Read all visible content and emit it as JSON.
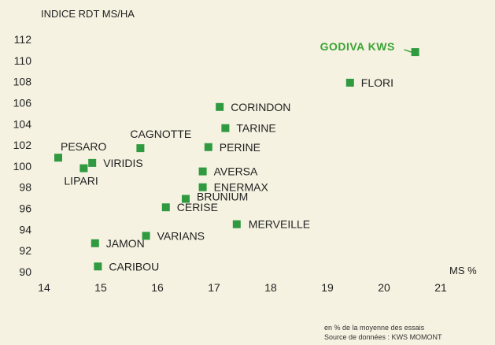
{
  "chart_data": {
    "type": "scatter",
    "title": "",
    "ylabel": "INDICE RDT MS/HA",
    "xlabel": "MS %",
    "xlim": [
      14,
      21
    ],
    "ylim": [
      90,
      112
    ],
    "xticks": [
      14,
      15,
      16,
      17,
      18,
      19,
      20,
      21
    ],
    "yticks": [
      90,
      92,
      94,
      96,
      98,
      100,
      102,
      104,
      106,
      108,
      110,
      112
    ],
    "grid": false,
    "marker_color": "#2f9a3f",
    "highlight_color": "#3aa535",
    "points": [
      {
        "label": "GODIVA KWS",
        "x": 20.55,
        "y": 110.8,
        "highlight": true
      },
      {
        "label": "FLORI",
        "x": 19.4,
        "y": 107.9
      },
      {
        "label": "CORINDON",
        "x": 17.1,
        "y": 105.6
      },
      {
        "label": "TARINE",
        "x": 17.2,
        "y": 103.6
      },
      {
        "label": "CAGNOTTE",
        "x": 15.7,
        "y": 101.7
      },
      {
        "label": "PERINE",
        "x": 16.9,
        "y": 101.8
      },
      {
        "label": "PESARO",
        "x": 14.25,
        "y": 100.8
      },
      {
        "label": "VIRIDIS",
        "x": 14.85,
        "y": 100.3
      },
      {
        "label": "LIPARI",
        "x": 14.7,
        "y": 99.8
      },
      {
        "label": "AVERSA",
        "x": 16.8,
        "y": 99.5
      },
      {
        "label": "ENERMAX",
        "x": 16.8,
        "y": 98.0
      },
      {
        "label": "BRUNIUM",
        "x": 16.5,
        "y": 96.9
      },
      {
        "label": "CERISE",
        "x": 16.15,
        "y": 96.1
      },
      {
        "label": "MERVEILLE",
        "x": 17.4,
        "y": 94.5
      },
      {
        "label": "VARIANS",
        "x": 15.8,
        "y": 93.4
      },
      {
        "label": "JAMON",
        "x": 14.9,
        "y": 92.7
      },
      {
        "label": "CARIBOU",
        "x": 14.95,
        "y": 90.5
      }
    ]
  },
  "source": {
    "line1": "en % de la moyenne des essais",
    "line2": "Source de données : KWS MOMONT"
  }
}
